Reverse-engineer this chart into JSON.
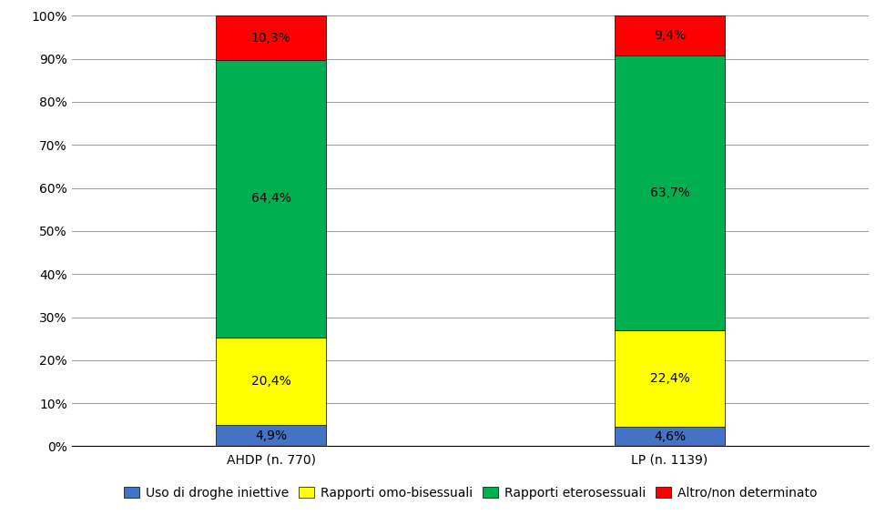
{
  "categories": [
    "AHDP (n. 770)",
    "LP (n. 1139)"
  ],
  "series": [
    {
      "label": "Uso di droghe iniettive",
      "color": "#4472C4",
      "values": [
        4.9,
        4.6
      ]
    },
    {
      "label": "Rapporti omo-bisessuali",
      "color": "#FFFF00",
      "values": [
        20.4,
        22.4
      ]
    },
    {
      "label": "Rapporti eterosessuali",
      "color": "#00B050",
      "values": [
        64.4,
        63.7
      ]
    },
    {
      "label": "Altro/non determinato",
      "color": "#FF0000",
      "values": [
        10.3,
        9.4
      ]
    }
  ],
  "ylim": [
    0,
    100
  ],
  "yticks": [
    0,
    10,
    20,
    30,
    40,
    50,
    60,
    70,
    80,
    90,
    100
  ],
  "ytick_labels": [
    "0%",
    "10%",
    "20%",
    "30%",
    "40%",
    "50%",
    "60%",
    "70%",
    "80%",
    "90%",
    "100%"
  ],
  "bar_width": 0.55,
  "bar_positions": [
    1.0,
    3.0
  ],
  "xlim": [
    0.0,
    4.0
  ],
  "label_fontsize": 10,
  "legend_fontsize": 10,
  "tick_fontsize": 10,
  "background_color": "#FFFFFF",
  "grid_color": "#999999"
}
